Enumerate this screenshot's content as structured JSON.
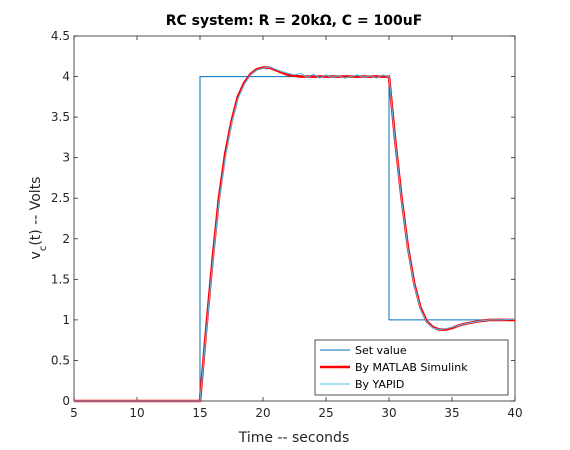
{
  "chart_data": {
    "type": "line",
    "title": "RC system: R = 20kΩ, C = 100uF",
    "xlabel": "Time -- seconds",
    "ylabel": {
      "main": "v",
      "sub": "c",
      "rest": "(t) --  Volts"
    },
    "xlim": [
      5,
      40
    ],
    "ylim": [
      0,
      4.5
    ],
    "xticks": [
      5,
      10,
      15,
      20,
      25,
      30,
      35,
      40
    ],
    "yticks": [
      0,
      0.5,
      1,
      1.5,
      2,
      2.5,
      3,
      3.5,
      4,
      4.5
    ],
    "grid": false,
    "legend_position": "bottom-right",
    "series": [
      {
        "name": "Set value",
        "color": "#0072bd",
        "step": true,
        "x": [
          5,
          15,
          15,
          30,
          30,
          40
        ],
        "y": [
          0,
          0,
          4,
          4,
          1,
          1
        ]
      },
      {
        "name": "By MATLAB Simulink",
        "color": "#ff0000",
        "x": [
          5,
          15,
          15.5,
          16,
          16.5,
          17,
          17.5,
          18,
          18.5,
          19,
          19.5,
          20,
          20.5,
          21,
          21.5,
          22,
          23,
          24,
          25,
          26,
          27,
          28,
          29,
          30,
          30.5,
          31,
          31.5,
          32,
          32.5,
          33,
          33.5,
          34,
          34.5,
          35,
          35.5,
          36,
          37,
          38,
          39,
          40
        ],
        "y": [
          0,
          0,
          0.9,
          1.75,
          2.5,
          3.05,
          3.45,
          3.75,
          3.92,
          4.03,
          4.09,
          4.11,
          4.11,
          4.08,
          4.05,
          4.02,
          4.0,
          4.0,
          4.0,
          4.0,
          4.0,
          4.0,
          4.0,
          4.0,
          3.2,
          2.5,
          1.9,
          1.45,
          1.15,
          0.98,
          0.91,
          0.88,
          0.88,
          0.9,
          0.93,
          0.95,
          0.98,
          1.0,
          1.0,
          1.0
        ]
      },
      {
        "name": "By YAPID",
        "color": "#4dbeee",
        "x": [
          5,
          15,
          15.5,
          16,
          16.5,
          17,
          17.5,
          18,
          18.5,
          19,
          19.5,
          20,
          20.5,
          21,
          21.5,
          22,
          22.5,
          23,
          23.5,
          24,
          24.5,
          25,
          25.5,
          26,
          26.5,
          27,
          27.5,
          28,
          28.5,
          29,
          29.5,
          30,
          30.5,
          31,
          31.5,
          32,
          32.5,
          33,
          33.5,
          34,
          34.5,
          35,
          35.5,
          36,
          37,
          38,
          39,
          40
        ],
        "y": [
          0,
          0,
          0.85,
          1.7,
          2.45,
          3.0,
          3.42,
          3.72,
          3.9,
          4.02,
          4.08,
          4.1,
          4.12,
          4.09,
          4.06,
          4.04,
          4.02,
          4.04,
          3.99,
          4.03,
          3.98,
          4.02,
          3.99,
          4.01,
          3.98,
          4.0,
          4.02,
          3.99,
          4.01,
          3.98,
          4.02,
          4.0,
          3.18,
          2.48,
          1.88,
          1.43,
          1.13,
          0.97,
          0.9,
          0.88,
          0.89,
          0.91,
          0.93,
          0.95,
          0.98,
          1.0,
          1.0,
          1.01
        ]
      }
    ]
  }
}
